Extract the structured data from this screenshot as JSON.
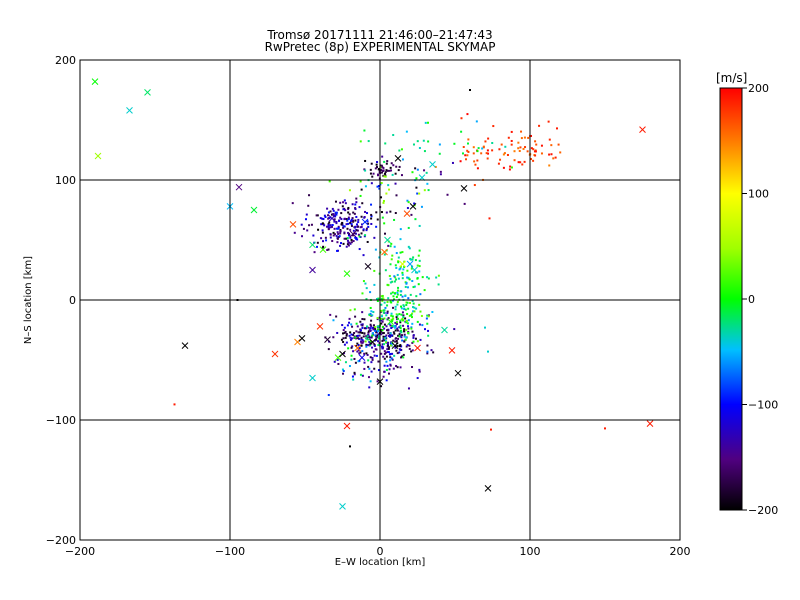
{
  "chart_data": {
    "type": "scatter",
    "title": "Tromsø 20171111 21:46:00–21:47:43",
    "subtitle": "RwPretec (8p) EXPERIMENTAL SKYMAP",
    "xlabel": "E–W location [km]",
    "ylabel": "N–S location [km]",
    "xlim": [
      -200,
      200
    ],
    "ylim": [
      -200,
      200
    ],
    "xticks": [
      "−200",
      "−100",
      "0",
      "100",
      "200"
    ],
    "yticks": [
      "−200",
      "−100",
      "0",
      "100",
      "200"
    ],
    "grid": true,
    "colorbar": {
      "unit": "[m/s]",
      "range": [
        -200,
        200
      ],
      "ticks": [
        "−200",
        "−100",
        "0",
        "100",
        "200"
      ]
    },
    "markers": [
      {
        "x": -190,
        "y": 182,
        "v": 0
      },
      {
        "x": -188,
        "y": 120,
        "v": 50
      },
      {
        "x": -167,
        "y": 158,
        "v": -40
      },
      {
        "x": -155,
        "y": 173,
        "v": -20
      },
      {
        "x": -130,
        "y": -38,
        "v": -200
      },
      {
        "x": -100,
        "y": 78,
        "v": -50
      },
      {
        "x": -94,
        "y": 94,
        "v": -150
      },
      {
        "x": -84,
        "y": 75,
        "v": -10
      },
      {
        "x": -70,
        "y": -45,
        "v": 180
      },
      {
        "x": -58,
        "y": 63,
        "v": 170
      },
      {
        "x": -55,
        "y": -35,
        "v": 150
      },
      {
        "x": -52,
        "y": -32,
        "v": -200
      },
      {
        "x": -45,
        "y": 46,
        "v": -20
      },
      {
        "x": -45,
        "y": 25,
        "v": -140
      },
      {
        "x": -45,
        "y": -65,
        "v": -40
      },
      {
        "x": -40,
        "y": -22,
        "v": 180
      },
      {
        "x": -38,
        "y": 42,
        "v": 20
      },
      {
        "x": -35,
        "y": -33,
        "v": -180
      },
      {
        "x": -32,
        "y": 68,
        "v": -130
      },
      {
        "x": -28,
        "y": -48,
        "v": 20
      },
      {
        "x": -25,
        "y": -45,
        "v": -200
      },
      {
        "x": -22,
        "y": 22,
        "v": 10
      },
      {
        "x": -22,
        "y": -105,
        "v": 190
      },
      {
        "x": -25,
        "y": -172,
        "v": -40
      },
      {
        "x": -18,
        "y": 55,
        "v": -160
      },
      {
        "x": -15,
        "y": -40,
        "v": 160
      },
      {
        "x": -12,
        "y": -48,
        "v": -110
      },
      {
        "x": -10,
        "y": 65,
        "v": -90
      },
      {
        "x": -8,
        "y": 28,
        "v": -190
      },
      {
        "x": -5,
        "y": -35,
        "v": -200
      },
      {
        "x": 0,
        "y": -68,
        "v": -200
      },
      {
        "x": 3,
        "y": 40,
        "v": 160
      },
      {
        "x": 5,
        "y": 50,
        "v": -30
      },
      {
        "x": 7,
        "y": -18,
        "v": 10
      },
      {
        "x": 10,
        "y": -38,
        "v": -200
      },
      {
        "x": 12,
        "y": 118,
        "v": -200
      },
      {
        "x": 15,
        "y": 30,
        "v": 80
      },
      {
        "x": 18,
        "y": 72,
        "v": 170
      },
      {
        "x": 20,
        "y": 30,
        "v": -60
      },
      {
        "x": 22,
        "y": 78,
        "v": -200
      },
      {
        "x": 23,
        "y": 25,
        "v": -40
      },
      {
        "x": 25,
        "y": -40,
        "v": 190
      },
      {
        "x": 28,
        "y": 102,
        "v": -40
      },
      {
        "x": 35,
        "y": 113,
        "v": -40
      },
      {
        "x": 43,
        "y": -25,
        "v": -30
      },
      {
        "x": 48,
        "y": -42,
        "v": 190
      },
      {
        "x": 52,
        "y": -61,
        "v": -200
      },
      {
        "x": 56,
        "y": 93,
        "v": -200
      },
      {
        "x": 72,
        "y": -157,
        "v": -200
      },
      {
        "x": 175,
        "y": 142,
        "v": 190
      },
      {
        "x": 180,
        "y": -103,
        "v": 190
      }
    ],
    "point_clusters": [
      {
        "cx": -25,
        "cy": 62,
        "sx": 12,
        "sy": 10,
        "n": 230,
        "vmin": -200,
        "vmax": -90
      },
      {
        "cx": 0,
        "cy": -32,
        "sx": 14,
        "sy": 10,
        "n": 320,
        "vmin": -200,
        "vmax": -100
      },
      {
        "cx": 8,
        "cy": -15,
        "sx": 12,
        "sy": 14,
        "n": 160,
        "vmin": -80,
        "vmax": 40
      },
      {
        "cx": 15,
        "cy": 15,
        "sx": 10,
        "sy": 18,
        "n": 120,
        "vmin": -60,
        "vmax": 30
      },
      {
        "cx": 3,
        "cy": 108,
        "sx": 6,
        "sy": 3,
        "n": 45,
        "vmin": -200,
        "vmax": -150
      },
      {
        "cx": 85,
        "cy": 125,
        "sx": 18,
        "sy": 12,
        "n": 90,
        "vmin": 150,
        "vmax": 200
      },
      {
        "cx": 5,
        "cy": 85,
        "sx": 18,
        "sy": 18,
        "n": 70,
        "vmin": -200,
        "vmax": 60
      },
      {
        "cx": -5,
        "cy": -55,
        "sx": 18,
        "sy": 10,
        "n": 60,
        "vmin": -200,
        "vmax": 0
      },
      {
        "cx": 40,
        "cy": 130,
        "sx": 25,
        "sy": 10,
        "n": 30,
        "vmin": -60,
        "vmax": 20
      }
    ],
    "isolated_points": [
      {
        "x": 60,
        "y": 175,
        "v": -200
      },
      {
        "x": 118,
        "y": 143,
        "v": 190
      },
      {
        "x": 150,
        "y": -107,
        "v": 190
      },
      {
        "x": 74,
        "y": -108,
        "v": 190
      },
      {
        "x": -137,
        "y": -87,
        "v": 190
      },
      {
        "x": -20,
        "y": -122,
        "v": -200
      },
      {
        "x": -95,
        "y": 0,
        "v": -200
      },
      {
        "x": 70,
        "y": -23,
        "v": -40
      },
      {
        "x": 72,
        "y": -43,
        "v": -40
      },
      {
        "x": 73,
        "y": 68,
        "v": 190
      }
    ]
  }
}
